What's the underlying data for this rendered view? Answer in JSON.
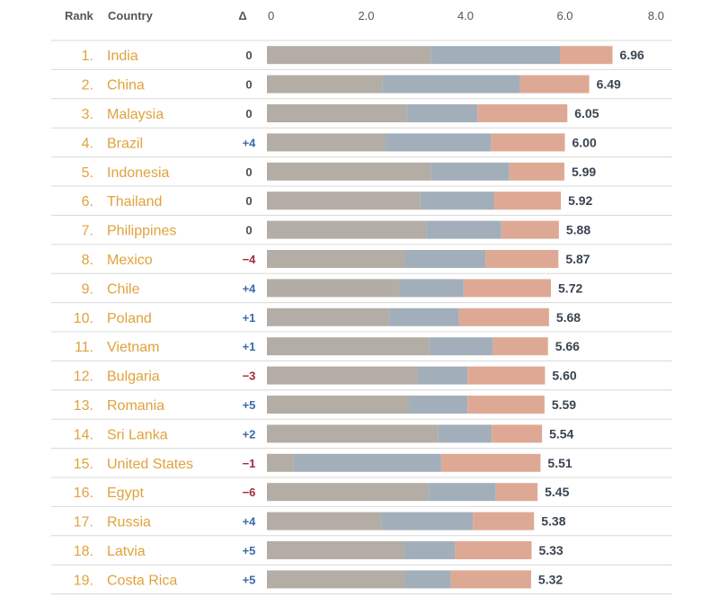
{
  "chart_data": {
    "type": "bar",
    "stacked": true,
    "headers": {
      "rank": "Rank",
      "country": "Country",
      "delta": "Δ"
    },
    "xticks": [
      "0",
      "2.0",
      "4.0",
      "6.0",
      "8.0"
    ],
    "xlim": [
      0,
      8
    ],
    "colors": [
      "#b3ada6",
      "#a2afba",
      "#dea994"
    ],
    "delta_colors": {
      "up": "#3b6aa8",
      "down": "#a32b3f",
      "zero": "#4a4f58"
    },
    "rows": [
      {
        "rank": "1.",
        "country": "India",
        "delta": "0",
        "segments": [
          3.3,
          2.6,
          1.06
        ],
        "total": "6.96"
      },
      {
        "rank": "2.",
        "country": "China",
        "delta": "0",
        "segments": [
          2.32,
          2.78,
          1.39
        ],
        "total": "6.49"
      },
      {
        "rank": "3.",
        "country": "Malaysia",
        "delta": "0",
        "segments": [
          2.82,
          1.42,
          1.81
        ],
        "total": "6.05"
      },
      {
        "rank": "4.",
        "country": "Brazil",
        "delta": "+4",
        "segments": [
          2.39,
          2.13,
          1.48
        ],
        "total": "6.00"
      },
      {
        "rank": "5.",
        "country": "Indonesia",
        "delta": "0",
        "segments": [
          3.3,
          1.58,
          1.11
        ],
        "total": "5.99"
      },
      {
        "rank": "6.",
        "country": "Thailand",
        "delta": "0",
        "segments": [
          3.09,
          1.48,
          1.35
        ],
        "total": "5.92"
      },
      {
        "rank": "7.",
        "country": "Philippines",
        "delta": "0",
        "segments": [
          3.21,
          1.51,
          1.16
        ],
        "total": "5.88"
      },
      {
        "rank": "8.",
        "country": "Mexico",
        "delta": "−4",
        "segments": [
          2.77,
          1.63,
          1.47
        ],
        "total": "5.87"
      },
      {
        "rank": "9.",
        "country": "Chile",
        "delta": "+4",
        "segments": [
          2.66,
          1.3,
          1.76
        ],
        "total": "5.72"
      },
      {
        "rank": "10.",
        "country": "Poland",
        "delta": "+1",
        "segments": [
          2.45,
          1.42,
          1.81
        ],
        "total": "5.68"
      },
      {
        "rank": "11.",
        "country": "Vietnam",
        "delta": "+1",
        "segments": [
          3.27,
          1.28,
          1.11
        ],
        "total": "5.66"
      },
      {
        "rank": "12.",
        "country": "Bulgaria",
        "delta": "−3",
        "segments": [
          3.04,
          1.0,
          1.56
        ],
        "total": "5.60"
      },
      {
        "rank": "13.",
        "country": "Romania",
        "delta": "+5",
        "segments": [
          2.86,
          1.18,
          1.55
        ],
        "total": "5.59"
      },
      {
        "rank": "14.",
        "country": "Sri Lanka",
        "delta": "+2",
        "segments": [
          3.45,
          1.08,
          1.01
        ],
        "total": "5.54"
      },
      {
        "rank": "15.",
        "country": "United States",
        "delta": "−1",
        "segments": [
          0.54,
          2.97,
          2.0
        ],
        "total": "5.51"
      },
      {
        "rank": "16.",
        "country": "Egypt",
        "delta": "−6",
        "segments": [
          3.26,
          1.35,
          0.84
        ],
        "total": "5.45"
      },
      {
        "rank": "17.",
        "country": "Russia",
        "delta": "+4",
        "segments": [
          2.3,
          1.85,
          1.23
        ],
        "total": "5.38"
      },
      {
        "rank": "18.",
        "country": "Latvia",
        "delta": "+5",
        "segments": [
          2.77,
          1.02,
          1.54
        ],
        "total": "5.33"
      },
      {
        "rank": "19.",
        "country": "Costa Rica",
        "delta": "+5",
        "segments": [
          2.77,
          0.93,
          1.62
        ],
        "total": "5.32"
      }
    ]
  }
}
